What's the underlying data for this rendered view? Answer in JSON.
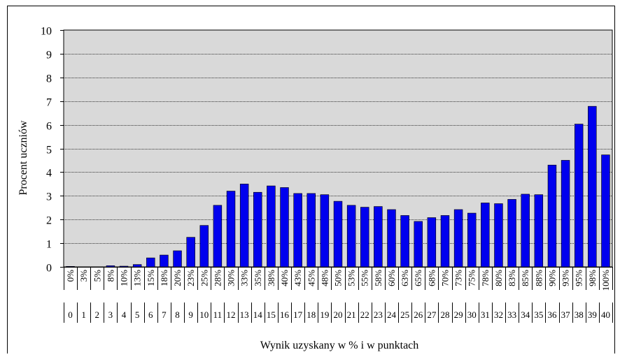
{
  "chart_data": {
    "type": "bar",
    "title": "",
    "ylabel": "Procent uczniów",
    "xlabel": "Wynik uzyskany w % i w punktach",
    "ylim": [
      0,
      10
    ],
    "yticks": [
      0,
      1,
      2,
      3,
      4,
      5,
      6,
      7,
      8,
      9,
      10
    ],
    "grid": true,
    "legend": "none",
    "colors": {
      "bar": "#0000ee",
      "plot_bg": "#d9d9d9",
      "grid": "#000000"
    },
    "categories": [
      "0%",
      "3%",
      "5%",
      "8%",
      "10%",
      "13%",
      "15%",
      "18%",
      "20%",
      "23%",
      "25%",
      "28%",
      "30%",
      "33%",
      "35%",
      "38%",
      "40%",
      "43%",
      "45%",
      "48%",
      "50%",
      "53%",
      "55%",
      "58%",
      "60%",
      "63%",
      "65%",
      "68%",
      "70%",
      "73%",
      "75%",
      "78%",
      "80%",
      "83%",
      "85%",
      "88%",
      "90%",
      "93%",
      "95%",
      "98%",
      "100%"
    ],
    "points": [
      "0",
      "1",
      "2",
      "3",
      "4",
      "5",
      "6",
      "7",
      "8",
      "9",
      "10",
      "11",
      "12",
      "13",
      "14",
      "15",
      "16",
      "17",
      "18",
      "19",
      "20",
      "21",
      "22",
      "23",
      "24",
      "25",
      "26",
      "27",
      "28",
      "29",
      "30",
      "31",
      "32",
      "33",
      "34",
      "35",
      "36",
      "37",
      "38",
      "39",
      "40"
    ],
    "values": [
      0.02,
      0,
      0,
      0.05,
      0.03,
      0.1,
      0.38,
      0.5,
      0.68,
      1.25,
      1.75,
      2.6,
      3.2,
      3.5,
      3.15,
      3.42,
      3.35,
      3.1,
      3.1,
      3.05,
      2.77,
      2.6,
      2.52,
      2.55,
      2.42,
      2.17,
      1.92,
      2.08,
      2.17,
      2.42,
      2.27,
      2.7,
      2.67,
      2.85,
      3.07,
      3.05,
      4.3,
      4.5,
      6.03,
      6.78,
      4.73
    ]
  }
}
